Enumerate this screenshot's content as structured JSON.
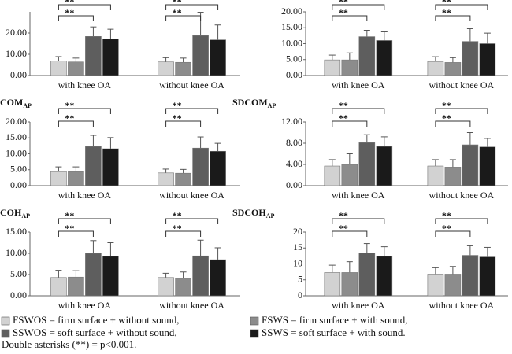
{
  "chart_data": [
    {
      "type": "bar",
      "categories": [
        "with knee OA",
        "without knee OA"
      ],
      "series": [
        {
          "values": [
            6.9,
            6.4
          ],
          "errors": [
            2,
            2
          ]
        },
        {
          "values": [
            6.4,
            6.2
          ],
          "errors": [
            1.8,
            2
          ]
        },
        {
          "values": [
            18.4,
            18.8
          ],
          "errors": [
            4.5,
            11
          ]
        },
        {
          "values": [
            17.3,
            16.8
          ],
          "errors": [
            4.5,
            7
          ]
        }
      ],
      "ylim": [
        0,
        30
      ],
      "yticks": [
        {
          "value": 0,
          "label": "0.00"
        },
        {
          "value": 10,
          "label": "10.00"
        },
        {
          "value": 20,
          "label": "20.00"
        }
      ],
      "brackets": [
        [
          {
            "label": "**",
            "span": [
              0,
              3
            ]
          },
          {
            "label": "**",
            "span": [
              0,
              2
            ]
          }
        ],
        [
          {
            "label": "**",
            "span": [
              0,
              3
            ]
          },
          {
            "label": "**",
            "span": [
              0,
              2
            ]
          }
        ]
      ]
    },
    {
      "type": "bar",
      "categories": [
        "with knee OA",
        "without knee OA"
      ],
      "series": [
        {
          "values": [
            4.9,
            4.4
          ],
          "errors": [
            1.5,
            1.5
          ]
        },
        {
          "values": [
            4.9,
            4.1
          ],
          "errors": [
            2.2,
            1.5
          ]
        },
        {
          "values": [
            12.2,
            10.7
          ],
          "errors": [
            2,
            4
          ]
        },
        {
          "values": [
            11,
            10
          ],
          "errors": [
            2.7,
            3.3
          ]
        }
      ],
      "ylim": [
        0,
        20
      ],
      "yticks": [
        {
          "value": 0,
          "label": "0.00"
        },
        {
          "value": 5,
          "label": "5.00"
        },
        {
          "value": 10,
          "label": "10.00"
        },
        {
          "value": 15,
          "label": "15.00"
        },
        {
          "value": 20,
          "label": "20.00"
        }
      ],
      "brackets": [
        [
          {
            "label": "**",
            "span": [
              0,
              3
            ]
          },
          {
            "label": "**",
            "span": [
              0,
              2
            ]
          }
        ],
        [
          {
            "label": "**",
            "span": [
              0,
              3
            ]
          },
          {
            "label": "**",
            "span": [
              0,
              2
            ]
          }
        ]
      ]
    },
    {
      "type": "bar",
      "title": "COM",
      "title_sub": "AP",
      "categories": [
        "with knee OA",
        "without knee OA"
      ],
      "series": [
        {
          "values": [
            4.4,
            4
          ],
          "errors": [
            1.5,
            1.2
          ]
        },
        {
          "values": [
            4.4,
            3.9
          ],
          "errors": [
            1.5,
            1.2
          ]
        },
        {
          "values": [
            12.3,
            11.8
          ],
          "errors": [
            3.5,
            3.5
          ]
        },
        {
          "values": [
            11.6,
            10.8
          ],
          "errors": [
            3.5,
            2.5
          ]
        }
      ],
      "ylim": [
        0,
        20
      ],
      "yticks": [
        {
          "value": 0,
          "label": "0.00"
        },
        {
          "value": 5,
          "label": "5.00"
        },
        {
          "value": 10,
          "label": "10.00"
        },
        {
          "value": 15,
          "label": "15.00"
        },
        {
          "value": 20,
          "label": "20.00"
        }
      ],
      "brackets": [
        [
          {
            "label": "**",
            "span": [
              0,
              3
            ]
          },
          {
            "label": "**",
            "span": [
              0,
              2
            ]
          }
        ],
        [
          {
            "label": "**",
            "span": [
              0,
              3
            ]
          },
          {
            "label": "**",
            "span": [
              0,
              2
            ]
          }
        ]
      ]
    },
    {
      "type": "bar",
      "title": "SDCOM",
      "title_sub": "AP",
      "categories": [
        "with knee OA",
        "without knee OA"
      ],
      "series": [
        {
          "values": [
            3.7,
            3.7
          ],
          "errors": [
            1.2,
            1.2
          ]
        },
        {
          "values": [
            4,
            3.5
          ],
          "errors": [
            2,
            1.4
          ]
        },
        {
          "values": [
            8.1,
            7.7
          ],
          "errors": [
            1.5,
            2.3
          ]
        },
        {
          "values": [
            7.4,
            7.3
          ],
          "errors": [
            1.8,
            1.6
          ]
        }
      ],
      "ylim": [
        0,
        12
      ],
      "yticks": [
        {
          "value": 0,
          "label": "0.00"
        },
        {
          "value": 4,
          "label": "4.00"
        },
        {
          "value": 8,
          "label": "8.00"
        },
        {
          "value": 12,
          "label": "12.00"
        }
      ],
      "brackets": [
        [
          {
            "label": "**",
            "span": [
              0,
              3
            ]
          },
          {
            "label": "**",
            "span": [
              0,
              2
            ]
          }
        ],
        [
          {
            "label": "**",
            "span": [
              0,
              3
            ]
          },
          {
            "label": "**",
            "span": [
              0,
              2
            ]
          }
        ]
      ]
    },
    {
      "type": "bar",
      "title": "COH",
      "title_sub": "AP",
      "categories": [
        "with knee OA",
        "without knee OA"
      ],
      "series": [
        {
          "values": [
            4.3,
            4.3
          ],
          "errors": [
            1.7,
            1
          ]
        },
        {
          "values": [
            4.4,
            4.1
          ],
          "errors": [
            1.5,
            1.5
          ]
        },
        {
          "values": [
            10,
            9.4
          ],
          "errors": [
            3,
            3.7
          ]
        },
        {
          "values": [
            9.3,
            8.5
          ],
          "errors": [
            3.2,
            2.8
          ]
        }
      ],
      "ylim": [
        0,
        15
      ],
      "yticks": [
        {
          "value": 0,
          "label": "0.00"
        },
        {
          "value": 5,
          "label": "5.00"
        },
        {
          "value": 10,
          "label": "10.00"
        },
        {
          "value": 15,
          "label": "15.00"
        }
      ],
      "brackets": [
        [
          {
            "label": "**",
            "span": [
              0,
              3
            ]
          },
          {
            "label": "**",
            "span": [
              0,
              2
            ]
          }
        ],
        [
          {
            "label": "**",
            "span": [
              0,
              3
            ]
          },
          {
            "label": "**",
            "span": [
              0,
              2
            ]
          }
        ]
      ]
    },
    {
      "type": "bar",
      "title": "SDCOH",
      "title_sub": "AP",
      "categories": [
        "with knee OA",
        "without knee OA"
      ],
      "series": [
        {
          "values": [
            7.3,
            6.8
          ],
          "errors": [
            2.3,
            2
          ]
        },
        {
          "values": [
            7.3,
            6.8
          ],
          "errors": [
            3.4,
            2.4
          ]
        },
        {
          "values": [
            13.4,
            12.7
          ],
          "errors": [
            3,
            3
          ]
        },
        {
          "values": [
            12.4,
            12.2
          ],
          "errors": [
            3,
            3
          ]
        }
      ],
      "ylim": [
        0,
        20
      ],
      "yticks": [
        0,
        5,
        10,
        15,
        20
      ],
      "brackets": [
        [
          {
            "label": "**",
            "span": [
              0,
              3
            ]
          },
          {
            "label": "**",
            "span": [
              0,
              2
            ]
          }
        ],
        [
          {
            "label": "**",
            "span": [
              0,
              3
            ]
          },
          {
            "label": "**",
            "span": [
              0,
              2
            ]
          }
        ]
      ]
    }
  ],
  "legend": {
    "items": [
      {
        "label": "FSWOS = firm surface + without sound,",
        "color": "#d2d2d2"
      },
      {
        "label": "FSWS = firm surface + with sound,",
        "color": "#8c8c8c"
      },
      {
        "label": "SSWOS = soft surface + without sound,",
        "color": "#5e5e5e"
      },
      {
        "label": "SSWS = soft surface + with sound.",
        "color": "#1a1a1a"
      }
    ],
    "note": "Double asterisks (**) = p<0.001."
  }
}
